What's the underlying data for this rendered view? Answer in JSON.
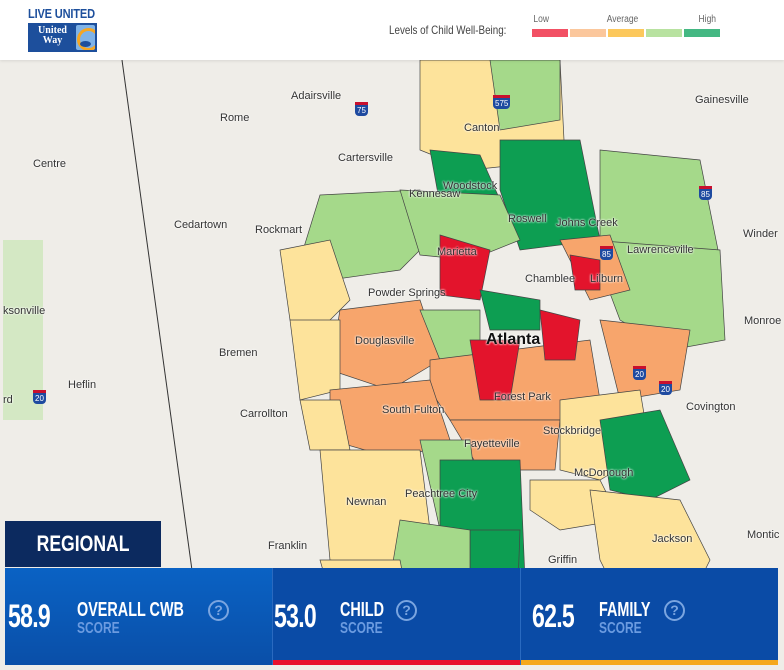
{
  "header": {
    "logo_top": "LIVE UNITED",
    "logo_text_1": "United",
    "logo_text_2": "Way",
    "legend_label": "Levels of Child Well-Being:",
    "legend_low": "Low",
    "legend_avg": "Average",
    "legend_high": "High",
    "legend_colors": [
      "#f25064",
      "#fbc79c",
      "#fcc85c",
      "#b8e2a0",
      "#44b883"
    ]
  },
  "map": {
    "cities": [
      "Adairsville",
      "Gainesville",
      "Rome",
      "Canton",
      "Centre",
      "Cartersville",
      "Woodstock",
      "Cedartown",
      "Rockmart",
      "Kennesaw",
      "Roswell",
      "Johns Creek",
      "Winder",
      "Marietta",
      "Lawrenceville",
      "Powder Springs",
      "Chamblee",
      "Lilburn",
      "ksonville",
      "Monroe",
      "Atlanta",
      "Bremen",
      "Douglasville",
      "Heflin",
      "rd",
      "Covington",
      "Carrollton",
      "South Fulton",
      "Forest Park",
      "Stockbridge",
      "Fayetteville",
      "McDonough",
      "Newnan",
      "Peachtree City",
      "Jackson",
      "Franklin",
      "Griffin",
      "Montic"
    ],
    "highways": [
      "75",
      "575",
      "85",
      "85",
      "20",
      "20",
      "20"
    ],
    "colors": {
      "red": "#e3142c",
      "orange": "#f7a56c",
      "yellow": "#fde39b",
      "lightgreen": "#a5d98a",
      "green": "#0d9e52"
    }
  },
  "scores": {
    "tab": "REGIONAL",
    "cards": [
      {
        "value": "58.9",
        "label": "OVERALL CWB",
        "sub": "SCORE",
        "help": "?"
      },
      {
        "value": "53.0",
        "label": "CHILD",
        "sub": "SCORE",
        "help": "?",
        "bar": "#e8112d"
      },
      {
        "value": "62.5",
        "label": "FAMILY",
        "sub": "SCORE",
        "help": "?",
        "bar": "#f5a81c"
      }
    ]
  }
}
